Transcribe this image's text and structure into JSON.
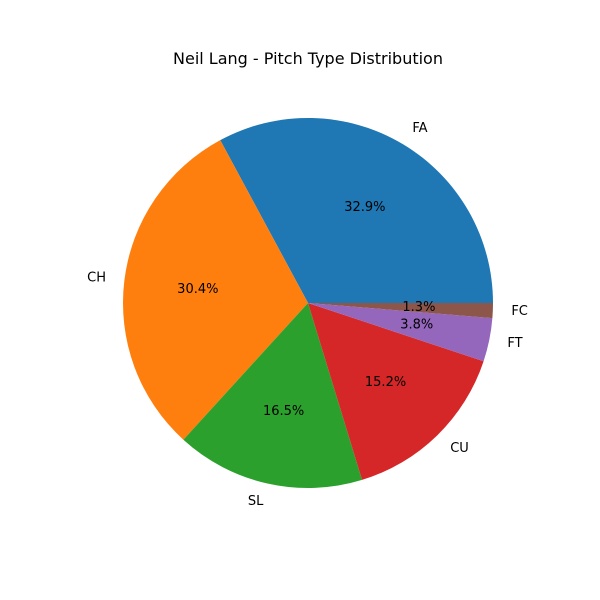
{
  "chart_data": {
    "type": "pie",
    "title": "Neil Lang - Pitch Type Distribution",
    "start_angle_deg": 0,
    "direction": "counterclockwise",
    "slices": [
      {
        "label": "FA",
        "value": 32.9,
        "pct_label": "32.9%",
        "color": "#1f77b4"
      },
      {
        "label": "CH",
        "value": 30.4,
        "pct_label": "30.4%",
        "color": "#ff7f0e"
      },
      {
        "label": "SL",
        "value": 16.5,
        "pct_label": "16.5%",
        "color": "#2ca02c"
      },
      {
        "label": "CU",
        "value": 15.2,
        "pct_label": "15.2%",
        "color": "#d62728"
      },
      {
        "label": "FT",
        "value": 3.8,
        "pct_label": "3.8%",
        "color": "#9467bd"
      },
      {
        "label": "FC",
        "value": 1.3,
        "pct_label": "1.3%",
        "color": "#8c564b"
      }
    ]
  }
}
